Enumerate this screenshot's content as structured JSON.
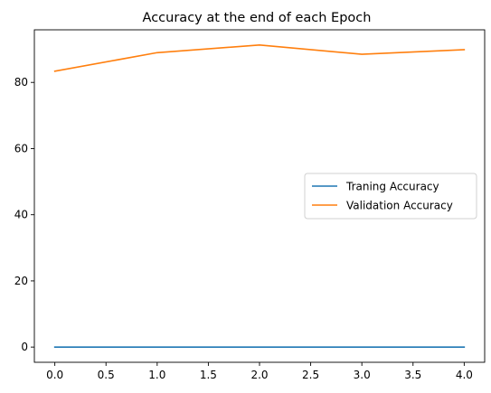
{
  "chart_data": {
    "type": "line",
    "title": "Accuracy at the end of each Epoch",
    "xlabel": "",
    "ylabel": "",
    "x": [
      0,
      1,
      2,
      3,
      4
    ],
    "xlim": [
      -0.2,
      4.2
    ],
    "ylim": [
      -4.6,
      95.9
    ],
    "xticks": [
      0,
      0.5,
      1,
      1.5,
      2,
      2.5,
      3,
      3.5,
      4
    ],
    "xtick_labels": [
      "0.0",
      "0.5",
      "1.0",
      "1.5",
      "2.0",
      "2.5",
      "3.0",
      "3.5",
      "4.0"
    ],
    "yticks": [
      0,
      20,
      40,
      60,
      80
    ],
    "ytick_labels": [
      "0",
      "20",
      "40",
      "60",
      "80"
    ],
    "grid": false,
    "legend_position": "center-right",
    "series": [
      {
        "name": "Traning Accuracy",
        "color": "#1f77b4",
        "values": [
          0.0,
          0.0,
          0.0,
          0.0,
          0.0
        ]
      },
      {
        "name": "Validation Accuracy",
        "color": "#ff7f0e",
        "values": [
          83.4,
          89.0,
          91.3,
          88.5,
          89.9
        ]
      }
    ]
  }
}
